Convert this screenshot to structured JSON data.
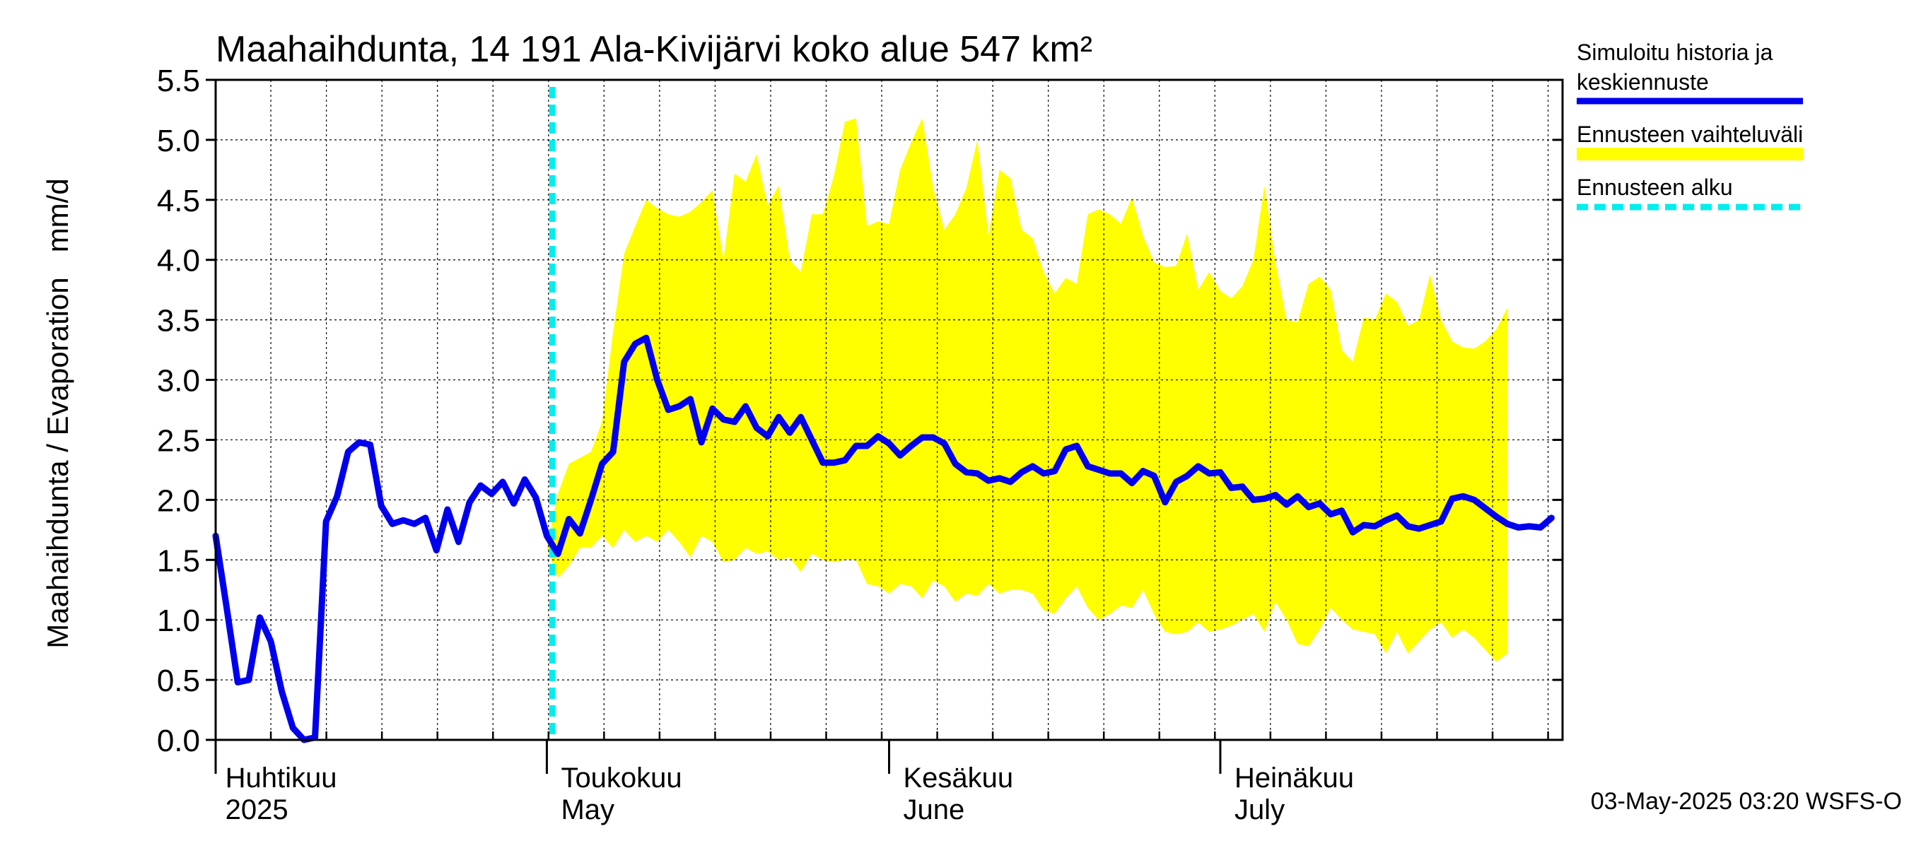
{
  "chart_data": {
    "type": "line",
    "title": "Maahaihdunta, 14 191 Ala-Kivijärvi koko alue 547 km²",
    "ylabel": "Maahaihdunta / Evaporation   mm/d",
    "ylim": [
      0,
      5.5
    ],
    "yticks": [
      "0.0",
      "0.5",
      "1.0",
      "1.5",
      "2.0",
      "2.5",
      "3.0",
      "3.5",
      "4.0",
      "4.5",
      "5.0",
      "5.5"
    ],
    "x_start": "2025-03-31",
    "x_days": 122,
    "forecast_start_day": 30.5,
    "month_labels": [
      {
        "day": 1,
        "fi": "Huhtikuu",
        "en": "2025"
      },
      {
        "day": 31,
        "fi": "Toukokuu",
        "en": "May"
      },
      {
        "day": 62,
        "fi": "Kesäkuu",
        "en": "June"
      },
      {
        "day": 92,
        "fi": "Heinäkuu",
        "en": "July"
      }
    ],
    "series": [
      {
        "name": "Simuloitu historia ja keskiennuste",
        "color": "#0000ee",
        "start_day": 0,
        "values": [
          1.7,
          1.1,
          0.48,
          0.5,
          1.02,
          0.82,
          0.4,
          0.1,
          0.0,
          0.02,
          1.82,
          2.03,
          2.4,
          2.48,
          2.46,
          1.95,
          1.8,
          1.83,
          1.8,
          1.85,
          1.58,
          1.92,
          1.65,
          1.98,
          2.12,
          2.05,
          2.15,
          1.97,
          2.17,
          2.02,
          1.7,
          1.55,
          1.84,
          1.72,
          2.0,
          2.3,
          2.4,
          3.15,
          3.3,
          3.35,
          3.0,
          2.75,
          2.78,
          2.84,
          2.48,
          2.76,
          2.67,
          2.65,
          2.78,
          2.6,
          2.53,
          2.69,
          2.56,
          2.69,
          2.5,
          2.31,
          2.31,
          2.33,
          2.45,
          2.45,
          2.53,
          2.47,
          2.37,
          2.45,
          2.52,
          2.52,
          2.47,
          2.3,
          2.23,
          2.22,
          2.16,
          2.18,
          2.15,
          2.23,
          2.28,
          2.22,
          2.24,
          2.42,
          2.45,
          2.28,
          2.25,
          2.22,
          2.22,
          2.14,
          2.24,
          2.2,
          1.98,
          2.15,
          2.2,
          2.28,
          2.22,
          2.23,
          2.1,
          2.11,
          2.0,
          2.01,
          2.04,
          1.96,
          2.03,
          1.94,
          1.97,
          1.88,
          1.91,
          1.73,
          1.79,
          1.78,
          1.83,
          1.87,
          1.78,
          1.76,
          1.79,
          1.82,
          2.01,
          2.03,
          2.0,
          1.93,
          1.86,
          1.8,
          1.77,
          1.78,
          1.77,
          1.85
        ]
      },
      {
        "name": "Ennusteen vaihteluväli",
        "color": "#ffff00",
        "start_day": 30,
        "upper": [
          1.6,
          2.05,
          2.3,
          2.35,
          2.4,
          2.65,
          3.4,
          4.05,
          4.28,
          4.5,
          4.43,
          4.38,
          4.36,
          4.4,
          4.48,
          4.58,
          4.0,
          4.72,
          4.65,
          4.88,
          4.45,
          4.62,
          4.0,
          3.9,
          4.38,
          4.38,
          4.7,
          5.15,
          5.18,
          4.28,
          4.32,
          4.3,
          4.75,
          4.98,
          5.18,
          4.6,
          4.25,
          4.38,
          4.6,
          5.0,
          4.2,
          4.75,
          4.68,
          4.25,
          4.18,
          3.9,
          3.72,
          3.85,
          3.8,
          4.38,
          4.42,
          4.38,
          4.3,
          4.52,
          4.2,
          3.98,
          3.94,
          3.95,
          4.22,
          3.75,
          3.9,
          3.74,
          3.68,
          3.78,
          4.0,
          4.62,
          3.98,
          3.5,
          3.48,
          3.8,
          3.86,
          3.75,
          3.25,
          3.15,
          3.52,
          3.5,
          3.72,
          3.65,
          3.45,
          3.5,
          3.88,
          3.5,
          3.32,
          3.27,
          3.26,
          3.32,
          3.42,
          3.6
        ]
      },
      {
        "name": "Ennusteen vaihteluväli lower",
        "start_day": 30,
        "lower": [
          1.6,
          1.35,
          1.45,
          1.6,
          1.6,
          1.7,
          1.6,
          1.75,
          1.65,
          1.7,
          1.65,
          1.75,
          1.65,
          1.52,
          1.7,
          1.65,
          1.48,
          1.5,
          1.6,
          1.55,
          1.57,
          1.5,
          1.52,
          1.4,
          1.55,
          1.5,
          1.48,
          1.5,
          1.5,
          1.3,
          1.28,
          1.22,
          1.3,
          1.28,
          1.18,
          1.33,
          1.28,
          1.15,
          1.22,
          1.2,
          1.3,
          1.22,
          1.25,
          1.25,
          1.22,
          1.08,
          1.05,
          1.18,
          1.28,
          1.1,
          1.0,
          1.05,
          1.12,
          1.1,
          1.25,
          1.05,
          0.9,
          0.88,
          0.9,
          0.98,
          0.9,
          0.92,
          0.95,
          1.0,
          1.05,
          0.9,
          1.15,
          1.0,
          0.8,
          0.78,
          0.92,
          1.1,
          1.0,
          0.92,
          0.9,
          0.88,
          0.72,
          0.9,
          0.72,
          0.82,
          0.92,
          0.98,
          0.85,
          0.92,
          0.85,
          0.75,
          0.65,
          0.72
        ]
      }
    ],
    "legend": [
      {
        "label_1": "Simuloitu historia ja",
        "label_2": "keskiennuste",
        "style": "solid",
        "color": "#0000ee"
      },
      {
        "label_1": "Ennusteen vaihteluväli",
        "label_2": "",
        "style": "band",
        "color": "#ffff00"
      },
      {
        "label_1": "Ennusteen alku",
        "label_2": "",
        "style": "dashed",
        "color": "#00eeee"
      }
    ],
    "footer": "03-May-2025 03:20 WSFS-O"
  }
}
